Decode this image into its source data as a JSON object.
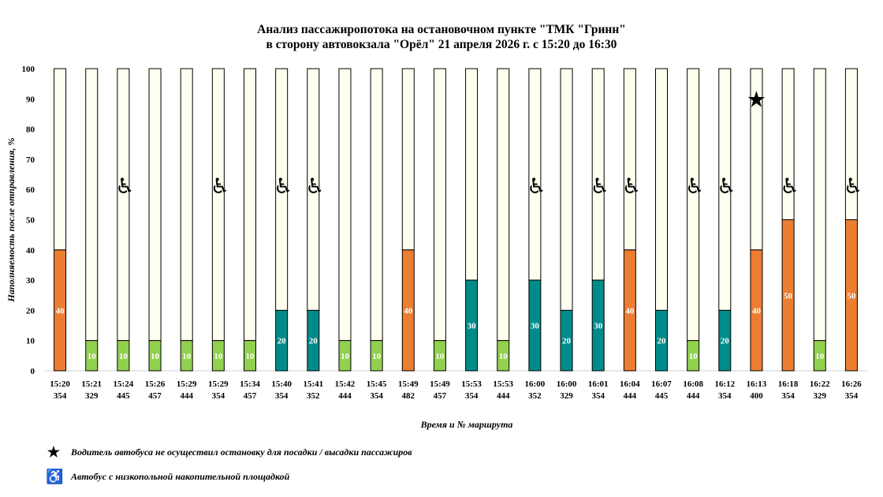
{
  "title": {
    "line1": "Анализ пассажиропотока на остановочном пункте \"ТМК \"Гринн\"",
    "line2": "в сторону автовокзала \"Орёл\" 21 апреля 2026 г. с 15:20 до 16:30"
  },
  "chart_data": {
    "type": "bar",
    "stacked": true,
    "ylabel": "Наполняемость после отправления, %",
    "xlabel": "Время и № маршрута",
    "ylim": [
      0,
      100
    ],
    "yticks": [
      0,
      10,
      20,
      30,
      40,
      50,
      60,
      70,
      80,
      90,
      100
    ],
    "grid": false,
    "categories": [
      {
        "time": "15:20",
        "route": "354"
      },
      {
        "time": "15:21",
        "route": "329"
      },
      {
        "time": "15:24",
        "route": "445"
      },
      {
        "time": "15:26",
        "route": "457"
      },
      {
        "time": "15:29",
        "route": "444"
      },
      {
        "time": "15:29",
        "route": "354"
      },
      {
        "time": "15:34",
        "route": "457"
      },
      {
        "time": "15:40",
        "route": "354"
      },
      {
        "time": "15:41",
        "route": "352"
      },
      {
        "time": "15:42",
        "route": "444"
      },
      {
        "time": "15:45",
        "route": "354"
      },
      {
        "time": "15:49",
        "route": "482"
      },
      {
        "time": "15:49",
        "route": "457"
      },
      {
        "time": "15:53",
        "route": "354"
      },
      {
        "time": "15:53",
        "route": "444"
      },
      {
        "time": "16:00",
        "route": "352"
      },
      {
        "time": "16:00",
        "route": "329"
      },
      {
        "time": "16:01",
        "route": "354"
      },
      {
        "time": "16:04",
        "route": "444"
      },
      {
        "time": "16:07",
        "route": "445"
      },
      {
        "time": "16:08",
        "route": "444"
      },
      {
        "time": "16:12",
        "route": "354"
      },
      {
        "time": "16:13",
        "route": "400"
      },
      {
        "time": "16:18",
        "route": "354"
      },
      {
        "time": "16:22",
        "route": "329"
      },
      {
        "time": "16:26",
        "route": "354"
      }
    ],
    "values": [
      40,
      10,
      10,
      10,
      10,
      10,
      10,
      20,
      20,
      10,
      10,
      40,
      10,
      30,
      10,
      30,
      20,
      30,
      40,
      20,
      10,
      20,
      40,
      50,
      10,
      50
    ],
    "remainder_max": 100,
    "low_floor": [
      false,
      false,
      true,
      false,
      false,
      true,
      false,
      true,
      true,
      false,
      false,
      false,
      false,
      false,
      false,
      true,
      false,
      true,
      true,
      false,
      true,
      true,
      false,
      true,
      false,
      true
    ],
    "no_stop": [
      false,
      false,
      false,
      false,
      false,
      false,
      false,
      false,
      false,
      false,
      false,
      false,
      false,
      false,
      false,
      false,
      false,
      false,
      false,
      false,
      false,
      false,
      true,
      false,
      false,
      false
    ],
    "colors": {
      "fill_10": "#92d050",
      "fill_20_30": "#008b8b",
      "fill_40_plus": "#ed7d31",
      "remainder": "#fffff0",
      "outline": "#000000",
      "label_text": "#ffffff"
    }
  },
  "legend": {
    "star_icon": "star-icon",
    "star_text": "Водитель автобуса не осуществил остановку для посадки / высадки пассажиров",
    "wheelchair_icon": "wheelchair-icon",
    "wheelchair_text": "Автобус с низкопольной накопительной площадкой"
  }
}
